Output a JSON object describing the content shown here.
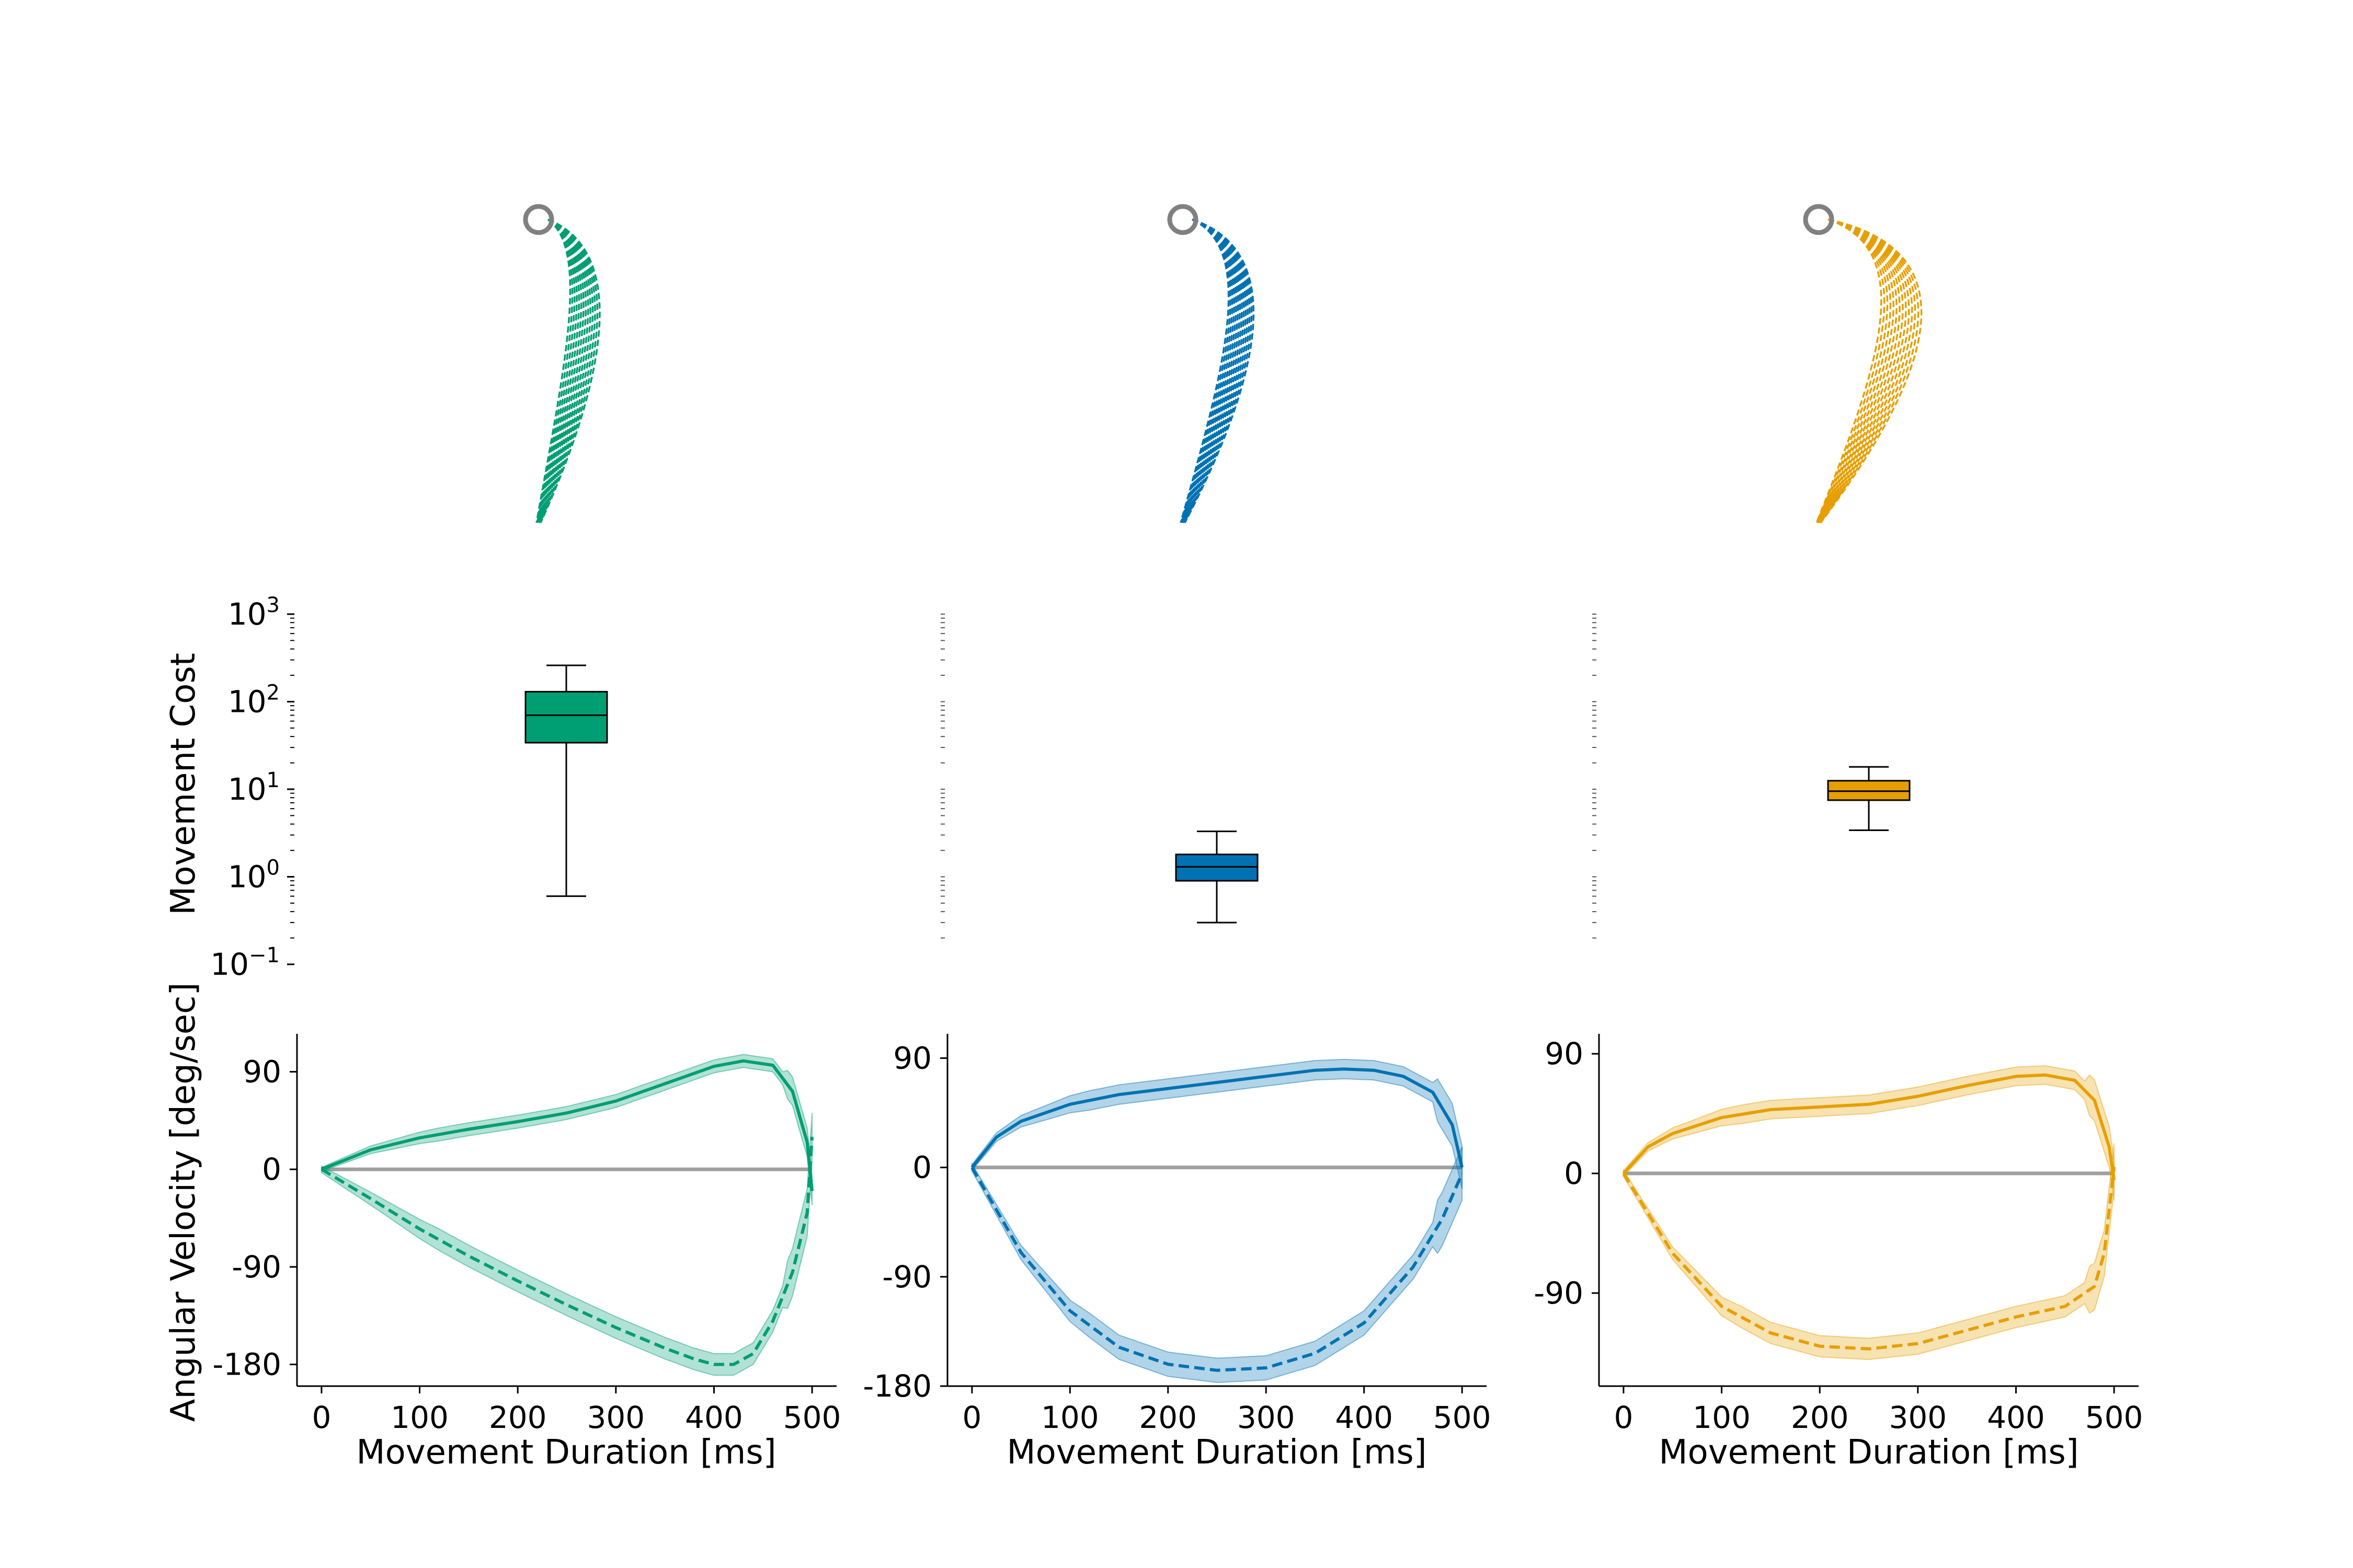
{
  "colors": {
    "green": "#009e73",
    "blue": "#0072b2",
    "orange": "#e69f00",
    "start_marker": "#808080",
    "zero_line": "#a0a0a0"
  },
  "labels": {
    "cost_ylabel": "Movement Cost",
    "vel_ylabel": "Angular Velocity [deg/sec]",
    "xlabel": "Movement Duration [ms]"
  },
  "chart_data": [
    {
      "type": "line",
      "subplot": "trajectories",
      "note_kind": "hand-path trajectories (dashed) from start circle, one panel per condition",
      "panels": [
        {
          "color": "green",
          "n_trajectories": 14
        },
        {
          "color": "blue",
          "n_trajectories": 14
        },
        {
          "color": "orange",
          "n_trajectories": 14
        }
      ]
    },
    {
      "type": "box",
      "subplot": "movement-cost",
      "ylabel": "Movement Cost",
      "yscale": "log",
      "ylim": [
        0.1,
        1000
      ],
      "yticks": [
        {
          "value": 0.1,
          "base": "10",
          "exp": "−1"
        },
        {
          "value": 1,
          "base": "10",
          "exp": "0"
        },
        {
          "value": 10,
          "base": "10",
          "exp": "1"
        },
        {
          "value": 100,
          "base": "10",
          "exp": "2"
        },
        {
          "value": 1000,
          "base": "10",
          "exp": "3"
        }
      ],
      "boxes": [
        {
          "color": "green",
          "whisker_low": 0.6,
          "q1": 34,
          "median": 70,
          "q3": 130,
          "whisker_high": 260
        },
        {
          "color": "blue",
          "whisker_low": 0.3,
          "q1": 0.9,
          "median": 1.3,
          "q3": 1.8,
          "whisker_high": 3.3
        },
        {
          "color": "orange",
          "whisker_low": 3.4,
          "q1": 7.5,
          "median": 9.5,
          "q3": 12.5,
          "whisker_high": 18
        }
      ]
    },
    {
      "type": "line",
      "subplot": "angular-velocity",
      "xlabel": "Movement Duration [ms]",
      "ylabel": "Angular Velocity [deg/sec]",
      "xlim": [
        -25,
        525
      ],
      "xticks": [
        0,
        100,
        200,
        300,
        400,
        500
      ],
      "panels": [
        {
          "color": "green",
          "ylim": [
            -200,
            125
          ],
          "yticks": [
            {
              "value": 90,
              "label": "90"
            },
            {
              "value": 0,
              "label": "0"
            },
            {
              "value": -90,
              "label": "-90"
            },
            {
              "value": -180,
              "label": "-180"
            }
          ],
          "series": [
            {
              "style": "solid",
              "x": [
                0,
                50,
                100,
                150,
                200,
                250,
                300,
                350,
                400,
                430,
                460,
                480,
                495,
                500
              ],
              "y": [
                0,
                18,
                29,
                37,
                44,
                52,
                63,
                79,
                95,
                100,
                96,
                72,
                25,
                -20
              ],
              "band": 6
            },
            {
              "style": "dashed",
              "x": [
                0,
                50,
                100,
                150,
                200,
                250,
                300,
                350,
                380,
                400,
                420,
                440,
                460,
                480,
                495,
                500
              ],
              "y": [
                0,
                -27,
                -55,
                -80,
                -103,
                -125,
                -146,
                -165,
                -175,
                -180,
                -180,
                -170,
                -140,
                -95,
                -40,
                30
              ],
              "band": 10
            }
          ]
        },
        {
          "color": "blue",
          "ylim": [
            -180,
            110
          ],
          "yticks": [
            {
              "value": 90,
              "label": "90"
            },
            {
              "value": 0,
              "label": "0"
            },
            {
              "value": -90,
              "label": "-90"
            },
            {
              "value": -180,
              "label": "-180"
            }
          ],
          "series": [
            {
              "style": "solid",
              "x": [
                0,
                25,
                50,
                100,
                150,
                200,
                250,
                300,
                350,
                380,
                410,
                440,
                470,
                490,
                500
              ],
              "y": [
                0,
                25,
                38,
                52,
                60,
                65,
                70,
                75,
                80,
                81,
                80,
                75,
                62,
                35,
                0
              ],
              "band": 8
            },
            {
              "style": "dashed",
              "x": [
                0,
                50,
                100,
                150,
                200,
                250,
                300,
                350,
                400,
                450,
                480,
                500
              ],
              "y": [
                0,
                -70,
                -118,
                -148,
                -162,
                -167,
                -165,
                -153,
                -128,
                -82,
                -42,
                -5
              ],
              "band": 10
            }
          ]
        },
        {
          "color": "orange",
          "ylim": [
            -160,
            105
          ],
          "yticks": [
            {
              "value": 90,
              "label": "90"
            },
            {
              "value": 0,
              "label": "0"
            },
            {
              "value": -90,
              "label": "-90"
            }
          ],
          "series": [
            {
              "style": "solid",
              "x": [
                0,
                25,
                50,
                100,
                150,
                200,
                250,
                300,
                350,
                400,
                430,
                460,
                480,
                495,
                500
              ],
              "y": [
                0,
                20,
                30,
                42,
                48,
                50,
                52,
                58,
                66,
                73,
                74,
                70,
                55,
                20,
                -5
              ],
              "band": 7
            },
            {
              "style": "dashed",
              "x": [
                0,
                50,
                100,
                150,
                200,
                250,
                300,
                350,
                400,
                450,
                480,
                490,
                500
              ],
              "y": [
                0,
                -60,
                -100,
                -120,
                -130,
                -132,
                -128,
                -118,
                -108,
                -100,
                -85,
                -60,
                5
              ],
              "band": 8
            }
          ]
        }
      ]
    }
  ]
}
